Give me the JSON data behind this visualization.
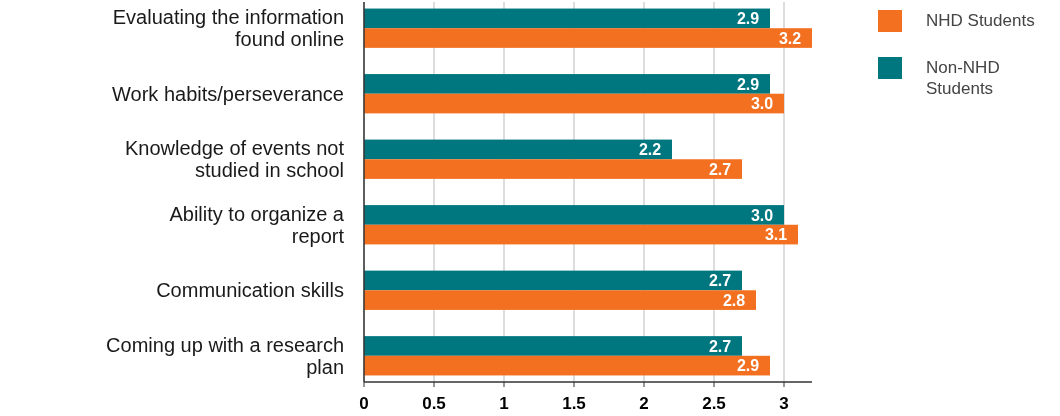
{
  "chart_data": {
    "type": "bar",
    "orientation": "horizontal",
    "categories": [
      "Evaluating the information found online",
      "Work habits/perseverance",
      "Knowledge of events not studied in school",
      "Ability to organize a report",
      "Communication skills",
      "Coming up with a research plan"
    ],
    "series": [
      {
        "name": "Non-NHD Students",
        "color": "#00767f",
        "values": [
          2.9,
          2.9,
          2.2,
          3.0,
          2.7,
          2.7
        ],
        "value_labels": [
          "2.9",
          "2.9",
          "2.2",
          "3.0",
          "2.7",
          "2.7"
        ]
      },
      {
        "name": "NHD Students",
        "color": "#f37021",
        "values": [
          3.2,
          3.0,
          2.7,
          3.1,
          2.8,
          2.9
        ],
        "value_labels": [
          "3.2",
          "3.0",
          "2.7",
          "3.1",
          "2.8",
          "2.9"
        ]
      }
    ],
    "xlim": [
      0,
      3.2
    ],
    "xticks": [
      0,
      0.5,
      1,
      1.5,
      2,
      2.5,
      3
    ],
    "grid": "x",
    "legend": "top right"
  }
}
